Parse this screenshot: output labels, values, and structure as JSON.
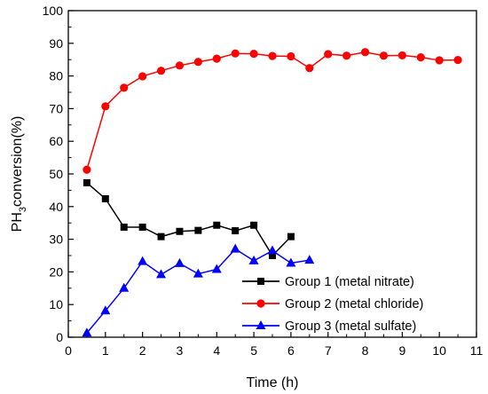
{
  "chart_data": {
    "type": "line",
    "xlabel": "Time (h)",
    "ylabel": {
      "base": "PH",
      "sub": "3",
      "rest": "conversion(%)"
    },
    "xlim": [
      0,
      11
    ],
    "ylim": [
      0,
      100
    ],
    "x_ticks": [
      0,
      1,
      2,
      3,
      4,
      5,
      6,
      7,
      8,
      9,
      10,
      11
    ],
    "y_ticks": [
      0,
      10,
      20,
      30,
      40,
      50,
      60,
      70,
      80,
      90,
      100
    ],
    "grid": false,
    "legend_position": "bottom-right",
    "series": [
      {
        "name": "Group 1 (metal nitrate)",
        "color": "#000000",
        "marker": "square",
        "x": [
          0.5,
          1,
          1.5,
          2,
          2.5,
          3,
          3.5,
          4,
          4.5,
          5,
          5.5,
          6
        ],
        "y": [
          47.3,
          42.4,
          33.7,
          33.7,
          30.8,
          32.4,
          32.7,
          34.3,
          32.6,
          34.3,
          25.0,
          30.8
        ]
      },
      {
        "name": "Group 2 (metal chloride)",
        "color": "#ff0000",
        "marker": "circle",
        "x": [
          0.5,
          1,
          1.5,
          2,
          2.5,
          3,
          3.5,
          4,
          4.5,
          5,
          5.5,
          6,
          6.5,
          7,
          7.5,
          8,
          8.5,
          9,
          9.5,
          10,
          10.5
        ],
        "y": [
          51.3,
          70.7,
          76.4,
          79.9,
          81.6,
          83.2,
          84.3,
          85.3,
          86.9,
          86.8,
          86.1,
          86.0,
          82.4,
          86.7,
          86.2,
          87.3,
          86.2,
          86.3,
          85.7,
          84.8,
          84.9
        ]
      },
      {
        "name": "Group 3 (metal sulfate)",
        "color": "#0000ff",
        "marker": "triangle",
        "x": [
          0.5,
          1,
          1.5,
          2,
          2.5,
          3,
          3.5,
          4,
          4.5,
          5,
          5.5,
          6,
          6.5
        ],
        "y": [
          1.3,
          8.1,
          15.0,
          23.2,
          19.2,
          22.6,
          19.4,
          20.8,
          27.0,
          23.4,
          26.5,
          22.7,
          23.6
        ]
      }
    ]
  }
}
